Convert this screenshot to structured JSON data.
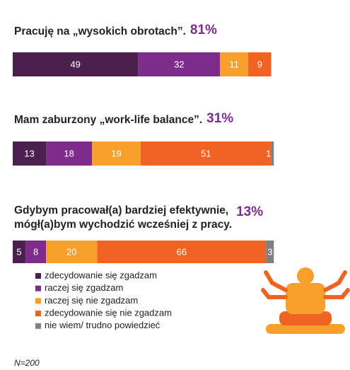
{
  "chart_data": {
    "type": "stacked-bar",
    "categories": [
      [
        "Pracuję na „wysokich obrotach”."
      ],
      [
        "Mam zaburzony „work-life balance”."
      ],
      [
        "Gdybym pracował(a) bardziej efektywnie,",
        "mógł(a)bym wychodzić wcześniej z pracy."
      ]
    ],
    "summary_values": [
      81,
      31,
      13
    ],
    "summary_labels": [
      "81%",
      "31%",
      "13%"
    ],
    "series": [
      {
        "name": "zdecydowanie się zgadzam",
        "color": "#4b1f4e",
        "values": [
          49,
          13,
          5
        ]
      },
      {
        "name": "raczej się zgadzam",
        "color": "#7d2c8c",
        "values": [
          32,
          18,
          8
        ]
      },
      {
        "name": "raczej się nie zgadzam",
        "color": "#f7a02c",
        "values": [
          11,
          19,
          20
        ]
      },
      {
        "name": "zdecydowanie się nie zgadzam",
        "color": "#f26222",
        "values": [
          9,
          51,
          66
        ]
      },
      {
        "name": "nie wiem/ trudno powiedzieć",
        "color": "#808080",
        "values": [
          null,
          1,
          3
        ]
      }
    ],
    "note": "N=200"
  }
}
